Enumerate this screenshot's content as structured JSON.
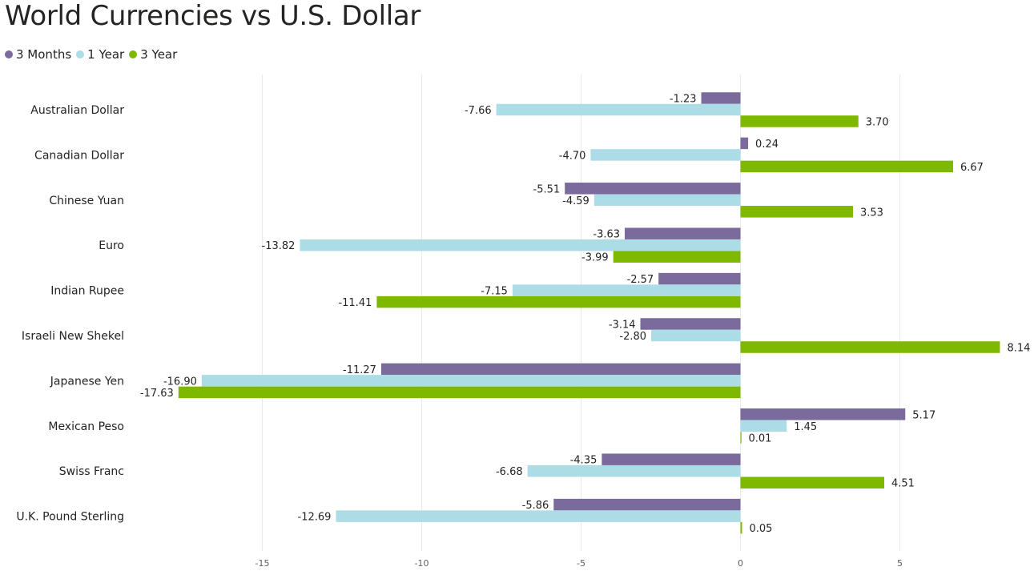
{
  "title": "World Currencies vs U.S. Dollar",
  "chart_data": {
    "type": "bar",
    "orientation": "horizontal",
    "title": "World Currencies vs U.S. Dollar",
    "categories": [
      "Australian Dollar",
      "Canadian Dollar",
      "Chinese Yuan",
      "Euro",
      "Indian Rupee",
      "Israeli New Shekel",
      "Japanese Yen",
      "Mexican Peso",
      "Swiss Franc",
      "U.K. Pound Sterling"
    ],
    "series": [
      {
        "name": "3 Months",
        "color": "#7b6a9c",
        "values": [
          -1.23,
          0.24,
          -5.51,
          -3.63,
          -2.57,
          -3.14,
          -11.27,
          5.17,
          -4.35,
          -5.86
        ]
      },
      {
        "name": "1 Year",
        "color": "#acdce6",
        "values": [
          -7.66,
          -4.7,
          -4.59,
          -13.82,
          -7.15,
          -2.8,
          -16.9,
          1.45,
          -6.68,
          -12.69
        ]
      },
      {
        "name": "3 Year",
        "color": "#7fb800",
        "values": [
          3.7,
          6.67,
          3.53,
          -3.99,
          -11.41,
          8.14,
          -17.63,
          0.01,
          4.51,
          0.05
        ]
      }
    ],
    "xticks": [
      -15,
      -10,
      -5,
      0,
      5
    ],
    "xlim": [
      -17.63,
      8.14
    ],
    "grid": true,
    "legend_position": "top-left",
    "data_labels": true
  }
}
